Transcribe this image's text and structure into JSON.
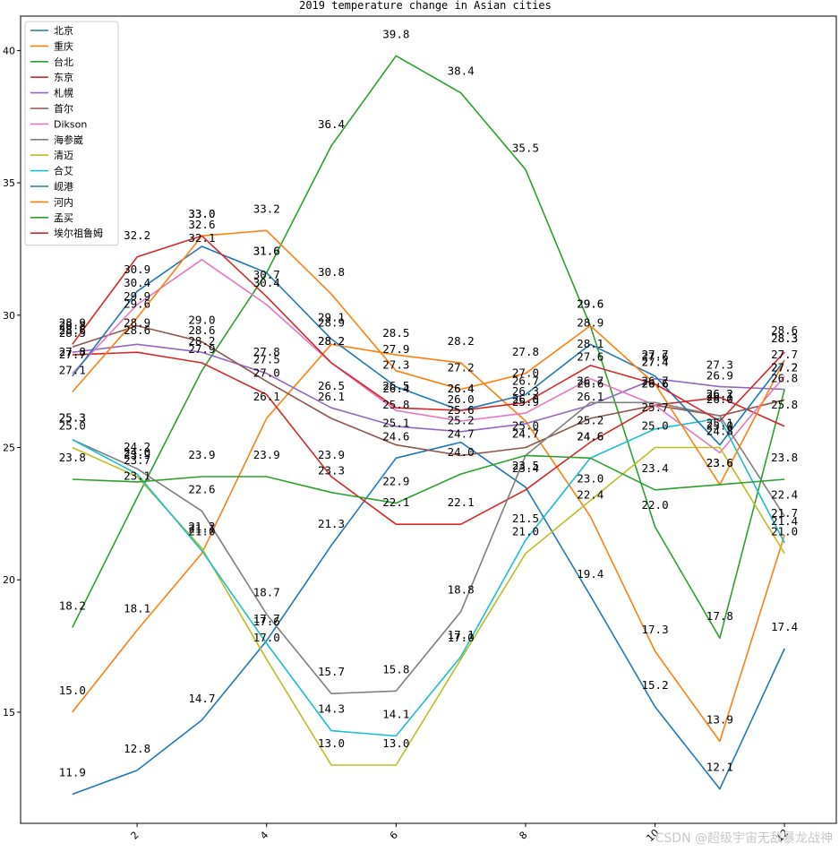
{
  "chart_data": {
    "type": "line",
    "title": "2019 temperature change in Asian cities",
    "xlabel": "",
    "ylabel": "",
    "x": [
      1,
      2,
      3,
      4,
      5,
      6,
      7,
      8,
      9,
      10,
      11,
      12
    ],
    "xlim": [
      0.2,
      12.8
    ],
    "ylim": [
      10.8,
      41.3
    ],
    "xticks": [
      2,
      4,
      6,
      8,
      10,
      12
    ],
    "yticks": [
      15,
      20,
      25,
      30,
      35,
      40
    ],
    "grid": false,
    "legend_position": "upper-left",
    "series": [
      {
        "name": "北京",
        "color": "#1f77b4",
        "values": [
          11.9,
          12.8,
          14.7,
          17.7,
          21.3,
          24.6,
          25.2,
          23.5,
          19.4,
          15.2,
          12.1,
          17.4
        ]
      },
      {
        "name": "重庆",
        "color": "#ff7f0e",
        "values": [
          15.0,
          18.1,
          21.0,
          26.1,
          28.9,
          28.5,
          28.2,
          26.0,
          22.4,
          17.3,
          13.9,
          21.7
        ]
      },
      {
        "name": "台北",
        "color": "#2ca02c",
        "values": [
          18.2,
          23.1,
          27.9,
          31.6,
          36.4,
          39.8,
          38.4,
          35.5,
          29.6,
          22.0,
          17.8,
          27.2
        ]
      },
      {
        "name": "东京",
        "color": "#d62728",
        "values": [
          28.5,
          28.6,
          28.2,
          27.0,
          23.9,
          22.1,
          22.1,
          23.4,
          25.2,
          26.6,
          26.9,
          25.8
        ]
      },
      {
        "name": "札幌",
        "color": "#9467bd",
        "values": [
          28.6,
          28.9,
          28.6,
          27.8,
          26.5,
          25.8,
          25.6,
          25.9,
          26.6,
          27.6,
          27.3,
          27.2
        ]
      },
      {
        "name": "首尔",
        "color": "#8c564b",
        "values": [
          28.8,
          29.6,
          29.0,
          27.5,
          26.1,
          25.1,
          24.7,
          25.0,
          26.1,
          26.6,
          26.2,
          26.8
        ]
      },
      {
        "name": "Dikson",
        "color": "#e377c2",
        "values": [
          27.8,
          30.4,
          32.1,
          30.4,
          28.2,
          26.4,
          26.0,
          26.3,
          27.6,
          26.6,
          24.8,
          27.7
        ]
      },
      {
        "name": "海参崴",
        "color": "#7f7f7f",
        "values": [
          25.3,
          24.2,
          22.6,
          18.7,
          15.7,
          15.8,
          18.8,
          24.7,
          26.7,
          26.7,
          26.2,
          22.4
        ]
      },
      {
        "name": "清迈",
        "color": "#bcbd22",
        "values": [
          25.0,
          23.9,
          21.2,
          17.0,
          13.0,
          13.0,
          17.0,
          21.0,
          23.0,
          25.0,
          25.0,
          21.0
        ]
      },
      {
        "name": "合艾",
        "color": "#17becf",
        "values": [
          25.3,
          24.0,
          21.1,
          17.6,
          14.3,
          14.1,
          17.1,
          21.5,
          24.6,
          25.7,
          26.1,
          21.4
        ]
      },
      {
        "name": "岘港",
        "color": "#1f77b4",
        "values": [
          27.7,
          30.9,
          32.6,
          31.6,
          29.1,
          27.3,
          26.4,
          27.0,
          28.9,
          27.7,
          25.1,
          28.3
        ]
      },
      {
        "name": "河内",
        "color": "#ff7f0e",
        "values": [
          27.1,
          29.9,
          33.0,
          33.2,
          30.8,
          27.9,
          27.2,
          27.8,
          29.6,
          27.4,
          23.6,
          28.3
        ]
      },
      {
        "name": "孟买",
        "color": "#2ca02c",
        "values": [
          23.8,
          23.7,
          23.9,
          23.9,
          23.3,
          22.9,
          24.0,
          24.7,
          24.6,
          23.4,
          23.6,
          23.8
        ]
      },
      {
        "name": "埃尔祖鲁姆",
        "color": "#d62728",
        "values": [
          28.9,
          32.2,
          33.0,
          30.7,
          28.2,
          26.5,
          26.4,
          26.7,
          28.1,
          27.4,
          26.0,
          28.6
        ]
      }
    ]
  },
  "watermark": "CSDN @超级宇宙无敌暴龙战神"
}
